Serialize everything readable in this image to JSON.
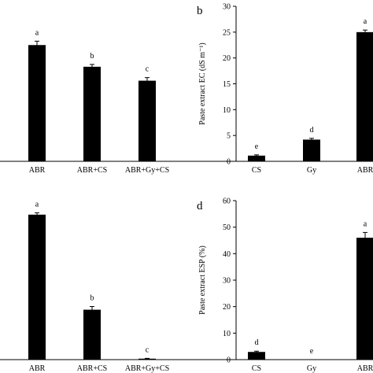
{
  "chart_data": [
    {
      "type": "bar",
      "panel_letter": "",
      "categories": [
        "ABR",
        "ABR+CS",
        "ABR+Gy+CS"
      ],
      "values": [
        7.5,
        6.1,
        5.2
      ],
      "errors": [
        0.25,
        0.15,
        0.2
      ],
      "letters": [
        "a",
        "b",
        "c"
      ],
      "ylim": [
        0,
        10
      ],
      "ylabel": "",
      "show_y_axis": false
    },
    {
      "type": "bar",
      "panel_letter": "b",
      "categories": [
        "CS",
        "Gy",
        "ABR"
      ],
      "values": [
        1.1,
        4.2,
        25.0
      ],
      "errors": [
        0.15,
        0.25,
        0.4
      ],
      "letters": [
        "e",
        "d",
        "a"
      ],
      "ylim": [
        0,
        30
      ],
      "yticks": [
        0,
        5,
        10,
        15,
        20,
        25,
        30
      ],
      "ylabel": "Paste extract EC (dS m⁻¹)",
      "show_y_axis": true
    },
    {
      "type": "bar",
      "panel_letter": "",
      "categories": [
        "ABR",
        "ABR+CS",
        "ABR+Gy+CS"
      ],
      "values": [
        45.6,
        15.7,
        0.3
      ],
      "errors": [
        0.6,
        1.0,
        0.1
      ],
      "letters": [
        "a",
        "b",
        "c"
      ],
      "ylim": [
        0,
        50
      ],
      "ylabel": "",
      "show_y_axis": false
    },
    {
      "type": "bar",
      "panel_letter": "d",
      "categories": [
        "CS",
        "Gy",
        "ABR"
      ],
      "values": [
        2.9,
        0.0,
        46.0
      ],
      "errors": [
        0.3,
        0.0,
        2.0
      ],
      "letters": [
        "d",
        "e",
        "a"
      ],
      "ylim": [
        0,
        60
      ],
      "yticks": [
        0,
        10,
        20,
        30,
        40,
        50,
        60
      ],
      "ylabel": "Paste extract ESP (%)",
      "show_y_axis": true
    }
  ]
}
